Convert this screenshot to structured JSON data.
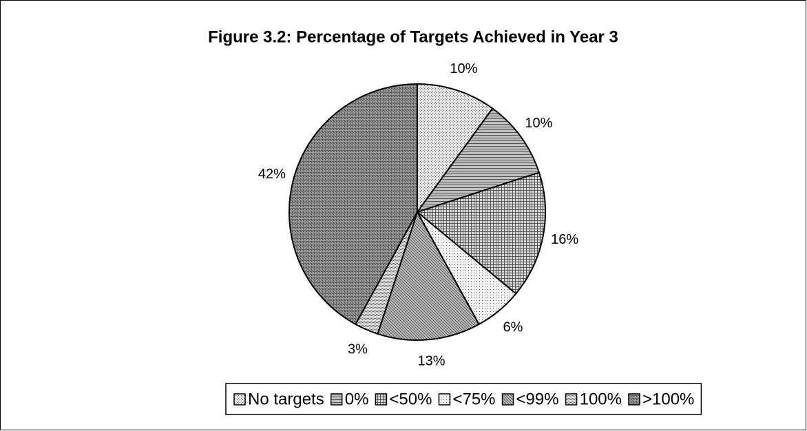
{
  "chart_data": {
    "type": "pie",
    "title": "Figure 3.2: Percentage of Targets Achieved in Year 3",
    "categories": [
      "No targets",
      "0%",
      "<50%",
      "<75%",
      "<99%",
      "100%",
      ">100%"
    ],
    "values": [
      10,
      10,
      16,
      6,
      13,
      3,
      42
    ],
    "value_labels": [
      "10%",
      "10%",
      "16%",
      "6%",
      "13%",
      "3%",
      "42%"
    ],
    "colors": [
      "#e6e6e6",
      "#bfbfbf",
      "#d9d9d9",
      "#f2f2f2",
      "#b3b3b3",
      "#e0e0e0",
      "#999999"
    ],
    "legend": "bottom"
  }
}
